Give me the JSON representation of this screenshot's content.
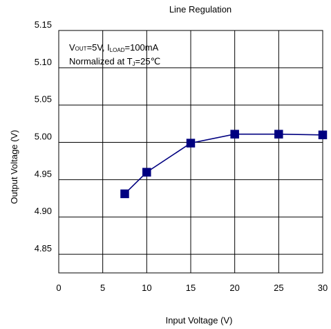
{
  "chart_data": {
    "type": "line",
    "title": "Line Regulation",
    "xlabel": "Input Voltage (V)",
    "ylabel": "Output Voltage (V)",
    "xlim": [
      0,
      30
    ],
    "ylim": [
      4.825,
      5.15
    ],
    "x_ticks": [
      "0",
      "5",
      "10",
      "15",
      "20",
      "25",
      "30"
    ],
    "x_tick_values": [
      0,
      5,
      10,
      15,
      20,
      25,
      30
    ],
    "y_ticks": [
      "5.15",
      "5.10",
      "5.05",
      "5.00",
      "4.95",
      "4.90",
      "4.85"
    ],
    "y_tick_values": [
      5.15,
      5.1,
      5.05,
      5.0,
      4.95,
      4.9,
      4.85
    ],
    "grid": true,
    "series": [
      {
        "color": "#000080",
        "marker": "square",
        "x": [
          7.5,
          10,
          15,
          20,
          25,
          30
        ],
        "y": [
          4.931,
          4.96,
          4.999,
          5.011,
          5.011,
          5.01
        ]
      }
    ],
    "annotations": {
      "line1": {
        "v": "V",
        "out_sub": "OUT",
        "eq_vout": "=5V, I",
        "load_sub": "LOAD",
        "eq_iload": "=100mA"
      },
      "line2": {
        "prefix": "Normalized at T",
        "j_sub": "J",
        "suffix": "=25℃"
      }
    }
  }
}
